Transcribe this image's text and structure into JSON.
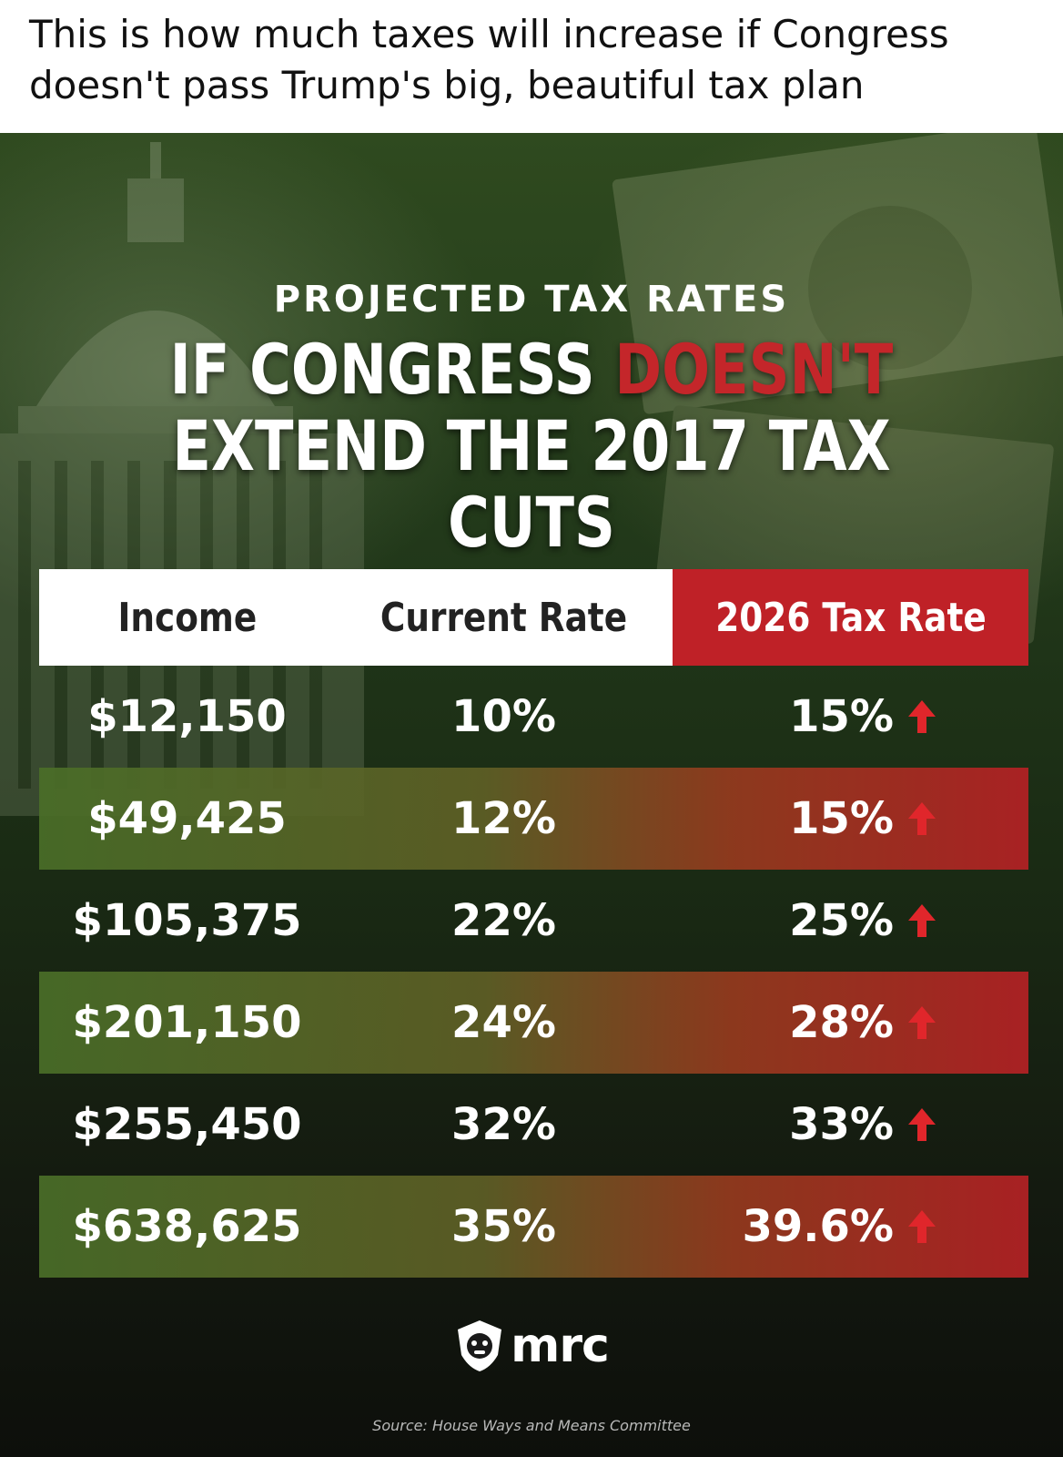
{
  "caption": {
    "line1": "This is how much taxes will increase if Congress",
    "line2": "doesn't pass Trump's big, beautiful tax plan"
  },
  "graphic": {
    "eyebrow": "PROJECTED TAX RATES",
    "headline": {
      "part1": "IF CONGRESS ",
      "highlight": "DOESN'T",
      "line2": "EXTEND THE 2017 TAX CUTS"
    },
    "table": {
      "headers": [
        "Income",
        "Current Rate",
        "2026 Tax Rate"
      ],
      "rows": [
        {
          "income": "$12,150",
          "current": "10%",
          "future": "15%"
        },
        {
          "income": "$49,425",
          "current": "12%",
          "future": "15%"
        },
        {
          "income": "$105,375",
          "current": "22%",
          "future": "25%"
        },
        {
          "income": "$201,150",
          "current": "24%",
          "future": "28%"
        },
        {
          "income": "$255,450",
          "current": "32%",
          "future": "33%"
        },
        {
          "income": "$638,625",
          "current": "35%",
          "future": "39.6%"
        }
      ]
    },
    "logo_text": "mrc",
    "source": "Source: House Ways and Means Committee",
    "icons": {
      "increase": "arrow-up-icon",
      "logo": "bulldog-shield-icon"
    },
    "colors": {
      "red_accent": "#c4262a",
      "header_red": "#bf2127",
      "green_band": "#4a6e28"
    }
  }
}
